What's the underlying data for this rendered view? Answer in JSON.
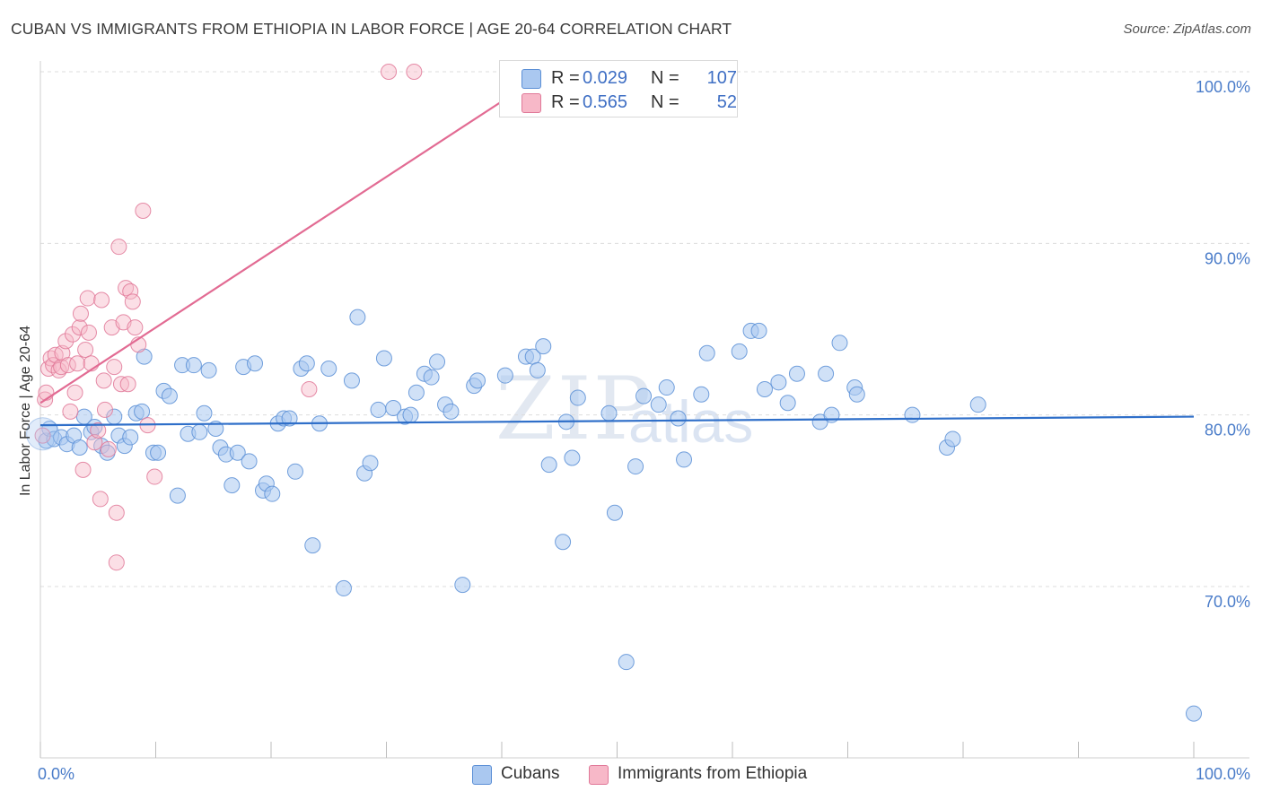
{
  "title": "CUBAN VS IMMIGRANTS FROM ETHIOPIA IN LABOR FORCE | AGE 20-64 CORRELATION CHART",
  "source": "Source: ZipAtlas.com",
  "watermark": {
    "zip": "ZIP",
    "atlas": "atlas"
  },
  "colors": {
    "blue_fill": "#aac8f0",
    "blue_stroke": "#5b8fd6",
    "blue_line": "#2f6fc9",
    "pink_fill": "#f7b8c8",
    "pink_stroke": "#e07898",
    "pink_line": "#e26b93",
    "axis_text": "#4a7cc9",
    "grid": "#dddddd"
  },
  "legend": {
    "rows": [
      {
        "r_label": "R = ",
        "r_value": "0.029",
        "n_label": "N = ",
        "n_value": "107"
      },
      {
        "r_label": "R = ",
        "r_value": "0.565",
        "n_label": "N = ",
        "n_value": "52"
      }
    ]
  },
  "bottom_legend": [
    "Cubans",
    "Immigrants from Ethiopia"
  ],
  "chart_data": {
    "type": "scatter",
    "title": "CUBAN VS IMMIGRANTS FROM ETHIOPIA IN LABOR FORCE | AGE 20-64 CORRELATION CHART",
    "xlabel": "",
    "ylabel": "In Labor Force | Age 20-64",
    "xlim": [
      0,
      100
    ],
    "ylim": [
      61,
      101
    ],
    "x_tick_labels": [
      "0.0%",
      "100.0%"
    ],
    "y_ticks": [
      70,
      80,
      90,
      100
    ],
    "y_tick_labels": [
      "70.0%",
      "80.0%",
      "90.0%",
      "100.0%"
    ],
    "grid": true,
    "series": [
      {
        "name": "Cubans",
        "points": [
          [
            0.5,
            78.5
          ],
          [
            0.8,
            79.2
          ],
          [
            1.2,
            78.6
          ],
          [
            1.8,
            78.7
          ],
          [
            2.3,
            78.3
          ],
          [
            2.9,
            78.8
          ],
          [
            3.4,
            78.1
          ],
          [
            3.8,
            79.9
          ],
          [
            4.4,
            79.0
          ],
          [
            4.7,
            79.3
          ],
          [
            5.3,
            78.2
          ],
          [
            5.8,
            77.8
          ],
          [
            6.4,
            79.9
          ],
          [
            6.8,
            78.8
          ],
          [
            7.3,
            78.2
          ],
          [
            7.8,
            78.7
          ],
          [
            8.3,
            80.1
          ],
          [
            8.8,
            80.2
          ],
          [
            9.0,
            83.4
          ],
          [
            9.8,
            77.8
          ],
          [
            10.2,
            77.8
          ],
          [
            10.7,
            81.4
          ],
          [
            11.2,
            81.1
          ],
          [
            11.9,
            75.3
          ],
          [
            12.3,
            82.9
          ],
          [
            12.8,
            78.9
          ],
          [
            13.3,
            82.9
          ],
          [
            13.8,
            79.0
          ],
          [
            14.2,
            80.1
          ],
          [
            14.6,
            82.6
          ],
          [
            15.2,
            79.2
          ],
          [
            15.6,
            78.1
          ],
          [
            16.1,
            77.7
          ],
          [
            16.6,
            75.9
          ],
          [
            17.1,
            77.8
          ],
          [
            17.6,
            82.8
          ],
          [
            18.1,
            77.3
          ],
          [
            18.6,
            83.0
          ],
          [
            19.3,
            75.6
          ],
          [
            19.6,
            76.0
          ],
          [
            20.1,
            75.4
          ],
          [
            20.6,
            79.5
          ],
          [
            21.1,
            79.8
          ],
          [
            21.6,
            79.8
          ],
          [
            22.1,
            76.7
          ],
          [
            22.6,
            82.7
          ],
          [
            23.1,
            83.0
          ],
          [
            23.6,
            72.4
          ],
          [
            24.2,
            79.5
          ],
          [
            25.0,
            82.7
          ],
          [
            26.3,
            69.9
          ],
          [
            27.0,
            82.0
          ],
          [
            27.5,
            85.7
          ],
          [
            28.1,
            76.6
          ],
          [
            28.6,
            77.2
          ],
          [
            29.3,
            80.3
          ],
          [
            29.8,
            83.3
          ],
          [
            30.6,
            80.4
          ],
          [
            31.6,
            79.9
          ],
          [
            32.1,
            80.0
          ],
          [
            32.6,
            81.3
          ],
          [
            33.3,
            82.4
          ],
          [
            33.9,
            82.2
          ],
          [
            34.4,
            83.1
          ],
          [
            35.1,
            80.6
          ],
          [
            35.6,
            80.2
          ],
          [
            36.6,
            70.1
          ],
          [
            37.6,
            81.7
          ],
          [
            37.9,
            82.0
          ],
          [
            40.3,
            82.3
          ],
          [
            42.1,
            83.4
          ],
          [
            42.7,
            83.4
          ],
          [
            43.1,
            82.6
          ],
          [
            43.6,
            84.0
          ],
          [
            44.1,
            77.1
          ],
          [
            45.3,
            72.6
          ],
          [
            45.6,
            79.6
          ],
          [
            46.1,
            77.5
          ],
          [
            46.6,
            81.0
          ],
          [
            49.3,
            80.1
          ],
          [
            49.8,
            74.3
          ],
          [
            50.8,
            65.6
          ],
          [
            51.6,
            77.0
          ],
          [
            52.3,
            81.1
          ],
          [
            53.6,
            80.6
          ],
          [
            54.3,
            81.6
          ],
          [
            55.3,
            79.8
          ],
          [
            55.8,
            77.4
          ],
          [
            57.3,
            81.2
          ],
          [
            57.8,
            83.6
          ],
          [
            60.6,
            83.7
          ],
          [
            61.6,
            84.9
          ],
          [
            62.3,
            84.9
          ],
          [
            62.8,
            81.5
          ],
          [
            64.0,
            81.9
          ],
          [
            64.8,
            80.7
          ],
          [
            65.6,
            82.4
          ],
          [
            67.6,
            79.6
          ],
          [
            68.1,
            82.4
          ],
          [
            68.6,
            80.0
          ],
          [
            69.3,
            84.2
          ],
          [
            70.6,
            81.6
          ],
          [
            70.8,
            81.2
          ],
          [
            75.6,
            80.0
          ],
          [
            78.6,
            78.1
          ],
          [
            79.1,
            78.6
          ],
          [
            81.3,
            80.6
          ],
          [
            100.0,
            62.6
          ]
        ],
        "trend": {
          "x0": 0,
          "y0": 79.4,
          "x1": 100,
          "y1": 79.9
        }
      },
      {
        "name": "Immigrants from Ethiopia",
        "points": [
          [
            0.2,
            78.8
          ],
          [
            0.4,
            80.9
          ],
          [
            0.5,
            81.3
          ],
          [
            0.7,
            82.7
          ],
          [
            0.9,
            83.3
          ],
          [
            1.1,
            82.9
          ],
          [
            1.3,
            83.5
          ],
          [
            1.6,
            82.6
          ],
          [
            1.8,
            82.8
          ],
          [
            1.9,
            83.6
          ],
          [
            2.2,
            84.3
          ],
          [
            2.4,
            82.9
          ],
          [
            2.6,
            80.2
          ],
          [
            2.8,
            84.7
          ],
          [
            3.0,
            81.3
          ],
          [
            3.2,
            83.0
          ],
          [
            3.4,
            85.1
          ],
          [
            3.5,
            85.9
          ],
          [
            3.7,
            76.8
          ],
          [
            3.9,
            83.8
          ],
          [
            4.1,
            86.8
          ],
          [
            4.2,
            84.8
          ],
          [
            4.4,
            83.0
          ],
          [
            4.7,
            78.4
          ],
          [
            5.0,
            79.1
          ],
          [
            5.2,
            75.1
          ],
          [
            5.3,
            86.7
          ],
          [
            5.5,
            82.0
          ],
          [
            5.6,
            80.3
          ],
          [
            5.9,
            78.0
          ],
          [
            6.2,
            85.1
          ],
          [
            6.4,
            82.8
          ],
          [
            6.6,
            74.3
          ],
          [
            6.6,
            71.4
          ],
          [
            6.8,
            89.8
          ],
          [
            7.0,
            81.8
          ],
          [
            7.2,
            85.4
          ],
          [
            7.4,
            87.4
          ],
          [
            7.6,
            81.8
          ],
          [
            7.8,
            87.2
          ],
          [
            8.0,
            86.6
          ],
          [
            8.2,
            85.1
          ],
          [
            8.5,
            84.1
          ],
          [
            8.9,
            91.9
          ],
          [
            9.3,
            79.4
          ],
          [
            9.9,
            76.4
          ],
          [
            23.3,
            81.5
          ],
          [
            30.2,
            100.0
          ],
          [
            32.4,
            100.0
          ]
        ],
        "trend": {
          "x0": 0,
          "y0": 80.7,
          "x1": 40.3,
          "y1": 98.4
        }
      }
    ]
  }
}
